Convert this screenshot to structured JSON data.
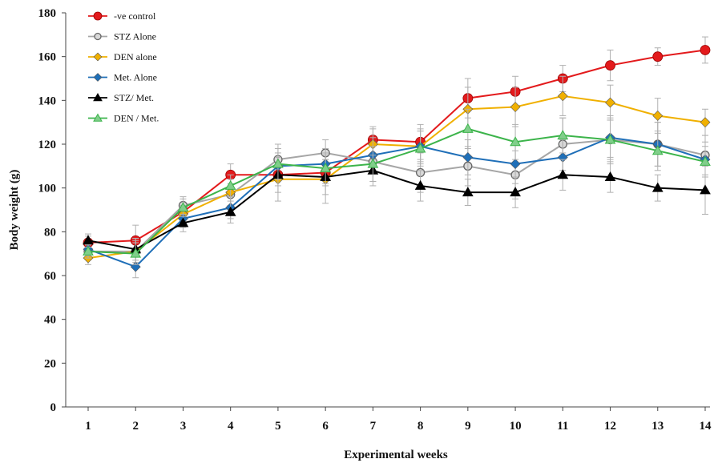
{
  "chart_data": {
    "type": "line",
    "title": "",
    "xlabel": "Experimental weeks",
    "ylabel": "Body weight (g)",
    "ylim": [
      0,
      180
    ],
    "yticks": [
      0,
      20,
      40,
      60,
      80,
      100,
      120,
      140,
      160,
      180
    ],
    "x": [
      1,
      2,
      3,
      4,
      5,
      6,
      7,
      8,
      9,
      10,
      11,
      12,
      13,
      14
    ],
    "grid": false,
    "legend_position": "top-left",
    "error_bars": true,
    "series": [
      {
        "name": "-ve control",
        "color": "#e31a1c",
        "marker": "circle",
        "values": [
          75,
          76,
          89,
          106,
          106,
          107,
          122,
          121,
          141,
          144,
          150,
          156,
          160,
          163
        ],
        "errors": [
          3,
          7,
          4,
          5,
          5,
          6,
          6,
          8,
          9,
          7,
          6,
          7,
          4,
          6
        ]
      },
      {
        "name": "STZ Alone",
        "color": "#8a8a8a",
        "marker": "circle-open",
        "values": [
          71,
          71,
          92,
          97,
          113,
          116,
          112,
          107,
          110,
          106,
          120,
          122,
          120,
          115
        ],
        "errors": [
          3,
          6,
          4,
          5,
          7,
          6,
          9,
          9,
          9,
          11,
          12,
          11,
          10,
          9
        ]
      },
      {
        "name": "DEN alone",
        "color": "#f0b000",
        "marker": "diamond",
        "values": [
          68,
          71,
          88,
          98,
          104,
          104,
          120,
          119,
          136,
          137,
          142,
          139,
          133,
          130
        ],
        "errors": [
          3,
          5,
          4,
          6,
          10,
          11,
          7,
          8,
          10,
          9,
          9,
          8,
          8,
          6
        ]
      },
      {
        "name": "Met. Alone",
        "color": "#1f6fb8",
        "marker": "diamond",
        "values": [
          72,
          64,
          86,
          91,
          110,
          111,
          115,
          119,
          114,
          111,
          114,
          123,
          120,
          113
        ],
        "errors": [
          3,
          5,
          4,
          5,
          6,
          7,
          8,
          7,
          8,
          9,
          8,
          9,
          10,
          8
        ]
      },
      {
        "name": "STZ/ Met.",
        "color": "#000000",
        "marker": "triangle",
        "values": [
          76,
          72,
          84,
          89,
          106,
          105,
          108,
          101,
          98,
          98,
          106,
          105,
          100,
          99
        ],
        "errors": [
          3,
          5,
          4,
          5,
          8,
          8,
          7,
          7,
          6,
          7,
          7,
          7,
          6,
          11
        ]
      },
      {
        "name": "DEN / Met.",
        "color": "#3cb44b",
        "marker": "triangle",
        "values": [
          71,
          70,
          91,
          101,
          111,
          109,
          111,
          118,
          127,
          121,
          124,
          122,
          117,
          112
        ],
        "errors": [
          3,
          5,
          4,
          5,
          7,
          7,
          8,
          8,
          9,
          8,
          8,
          9,
          9,
          7
        ]
      }
    ]
  }
}
